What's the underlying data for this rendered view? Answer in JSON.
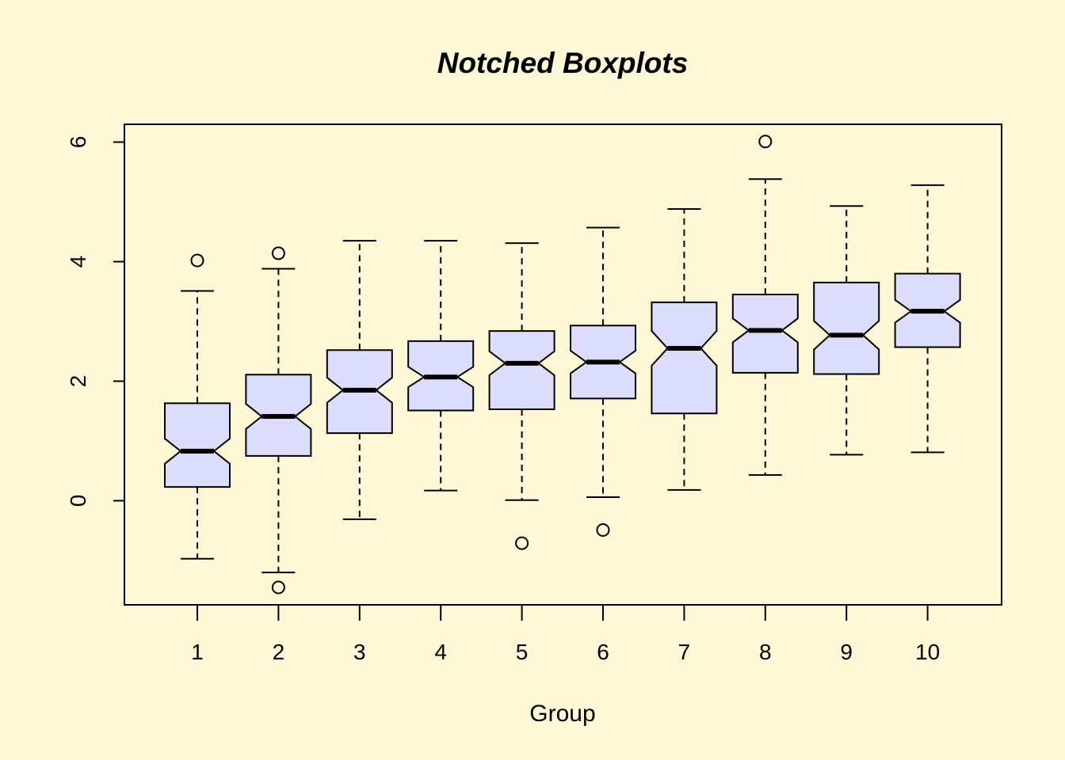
{
  "colors": {
    "background": "#fff8d7",
    "box_fill": "#dcdcfb",
    "stroke": "#000000"
  },
  "chart_data": {
    "type": "boxplot",
    "notched": true,
    "title": "Notched Boxplots",
    "xlabel": "Group",
    "ylabel": "",
    "categories": [
      "1",
      "2",
      "3",
      "4",
      "5",
      "6",
      "7",
      "8",
      "9",
      "10"
    ],
    "y_ticks": [
      "0",
      "2",
      "4",
      "6"
    ],
    "ylim": [
      -1.75,
      6.3
    ],
    "grid": false,
    "legend": "none",
    "boxes": [
      {
        "group": "1",
        "whisker_low": -0.97,
        "q1": 0.23,
        "median": 0.83,
        "q3": 1.63,
        "whisker_high": 3.51,
        "notch_low": 0.62,
        "notch_high": 1.04,
        "outliers": [
          4.02
        ]
      },
      {
        "group": "2",
        "whisker_low": -1.2,
        "q1": 0.75,
        "median": 1.41,
        "q3": 2.11,
        "whisker_high": 3.88,
        "notch_low": 1.2,
        "notch_high": 1.62,
        "outliers": [
          4.14,
          -1.45
        ]
      },
      {
        "group": "3",
        "whisker_low": -0.31,
        "q1": 1.13,
        "median": 1.85,
        "q3": 2.52,
        "whisker_high": 4.35,
        "notch_low": 1.64,
        "notch_high": 2.06,
        "outliers": []
      },
      {
        "group": "4",
        "whisker_low": 0.17,
        "q1": 1.51,
        "median": 2.07,
        "q3": 2.67,
        "whisker_high": 4.35,
        "notch_low": 1.9,
        "notch_high": 2.24,
        "outliers": []
      },
      {
        "group": "5",
        "whisker_low": 0.01,
        "q1": 1.53,
        "median": 2.3,
        "q3": 2.84,
        "whisker_high": 4.31,
        "notch_low": 2.1,
        "notch_high": 2.5,
        "outliers": [
          -0.71
        ]
      },
      {
        "group": "6",
        "whisker_low": 0.06,
        "q1": 1.71,
        "median": 2.32,
        "q3": 2.93,
        "whisker_high": 4.57,
        "notch_low": 2.13,
        "notch_high": 2.51,
        "outliers": [
          -0.49
        ]
      },
      {
        "group": "7",
        "whisker_low": 0.18,
        "q1": 1.46,
        "median": 2.55,
        "q3": 3.32,
        "whisker_high": 4.88,
        "notch_low": 2.26,
        "notch_high": 2.84,
        "outliers": []
      },
      {
        "group": "8",
        "whisker_low": 0.43,
        "q1": 2.14,
        "median": 2.85,
        "q3": 3.45,
        "whisker_high": 5.38,
        "notch_low": 2.65,
        "notch_high": 3.05,
        "outliers": [
          6.01
        ]
      },
      {
        "group": "9",
        "whisker_low": 0.77,
        "q1": 2.12,
        "median": 2.77,
        "q3": 3.65,
        "whisker_high": 4.93,
        "notch_low": 2.53,
        "notch_high": 3.01,
        "outliers": []
      },
      {
        "group": "10",
        "whisker_low": 0.81,
        "q1": 2.57,
        "median": 3.17,
        "q3": 3.8,
        "whisker_high": 5.28,
        "notch_low": 2.98,
        "notch_high": 3.36,
        "outliers": []
      }
    ]
  }
}
